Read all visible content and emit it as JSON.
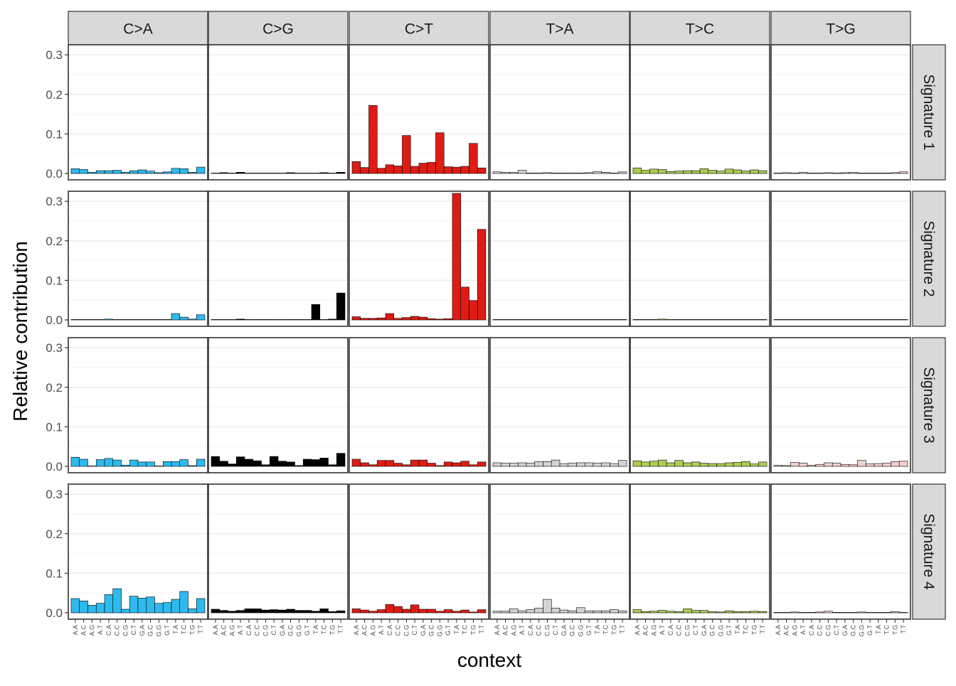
{
  "chart_data": {
    "type": "bar",
    "xlabel": "context",
    "ylabel": "Relative contribution",
    "ylim": [
      0,
      0.32
    ],
    "yticks": [
      0.0,
      0.1,
      0.2,
      0.3
    ],
    "ytick_labels": [
      "0.0",
      "0.1",
      "0.2",
      "0.3"
    ],
    "grid": true,
    "facet_columns": [
      "C>A",
      "C>G",
      "C>T",
      "T>A",
      "T>C",
      "T>G"
    ],
    "facet_rows": [
      "Signature 1",
      "Signature 2",
      "Signature 3",
      "Signature 4"
    ],
    "contexts": [
      "A.A",
      "A.C",
      "A.G",
      "A.T",
      "C.A",
      "C.C",
      "C.G",
      "C.T",
      "G.A",
      "G.C",
      "G.G",
      "G.T",
      "T.A",
      "T.C",
      "T.G",
      "T.T"
    ],
    "colors": {
      "C>A": "#2EBAED",
      "C>G": "#000000",
      "C>T": "#DE1C14",
      "T>A": "#D4D2D2",
      "T>C": "#ADCC54",
      "T>G": "#F0D0CE"
    },
    "series": [
      {
        "name": "Signature 1",
        "values": {
          "C>A": [
            0.012,
            0.01,
            0.003,
            0.007,
            0.007,
            0.008,
            0.003,
            0.007,
            0.009,
            0.006,
            0.002,
            0.004,
            0.013,
            0.012,
            0.003,
            0.016
          ],
          "C>G": [
            0.001,
            0.002,
            0.001,
            0.003,
            0.001,
            0.001,
            0.001,
            0.001,
            0.001,
            0.002,
            0.001,
            0.001,
            0.001,
            0.002,
            0.001,
            0.003
          ],
          "C>T": [
            0.03,
            0.015,
            0.172,
            0.013,
            0.022,
            0.019,
            0.096,
            0.018,
            0.026,
            0.028,
            0.103,
            0.017,
            0.016,
            0.018,
            0.076,
            0.014
          ],
          "T>A": [
            0.004,
            0.003,
            0.003,
            0.008,
            0.001,
            0.001,
            0.002,
            0.001,
            0.001,
            0.001,
            0.001,
            0.002,
            0.005,
            0.003,
            0.001,
            0.004
          ],
          "T>C": [
            0.014,
            0.008,
            0.011,
            0.01,
            0.005,
            0.006,
            0.007,
            0.007,
            0.012,
            0.008,
            0.006,
            0.011,
            0.009,
            0.006,
            0.009,
            0.007
          ],
          "T>G": [
            0.001,
            0.002,
            0.001,
            0.003,
            0.001,
            0.001,
            0.002,
            0.001,
            0.002,
            0.003,
            0.001,
            0.001,
            0.001,
            0.001,
            0.002,
            0.004
          ]
        }
      },
      {
        "name": "Signature 2",
        "values": {
          "C>A": [
            0.001,
            0.001,
            0.001,
            0.001,
            0.002,
            0.001,
            0.001,
            0.001,
            0.001,
            0.001,
            0.001,
            0.001,
            0.016,
            0.007,
            0.002,
            0.013
          ],
          "C>G": [
            0.001,
            0.001,
            0.001,
            0.002,
            0.001,
            0.001,
            0.001,
            0.001,
            0.001,
            0.001,
            0.001,
            0.001,
            0.039,
            0.001,
            0.002,
            0.068
          ],
          "C>T": [
            0.008,
            0.004,
            0.004,
            0.005,
            0.016,
            0.004,
            0.006,
            0.009,
            0.007,
            0.003,
            0.002,
            0.003,
            0.32,
            0.083,
            0.049,
            0.229
          ],
          "T>A": [
            0.001,
            0.001,
            0.001,
            0.001,
            0.001,
            0.001,
            0.001,
            0.001,
            0.001,
            0.001,
            0.001,
            0.001,
            0.001,
            0.001,
            0.001,
            0.001
          ],
          "T>C": [
            0.001,
            0.001,
            0.001,
            0.002,
            0.001,
            0.001,
            0.001,
            0.001,
            0.001,
            0.001,
            0.001,
            0.001,
            0.001,
            0.001,
            0.001,
            0.001
          ],
          "T>G": [
            0.001,
            0.001,
            0.001,
            0.001,
            0.001,
            0.001,
            0.001,
            0.001,
            0.001,
            0.001,
            0.001,
            0.001,
            0.001,
            0.001,
            0.001,
            0.001
          ]
        }
      },
      {
        "name": "Signature 3",
        "values": {
          "C>A": [
            0.023,
            0.018,
            0.001,
            0.017,
            0.02,
            0.016,
            0.003,
            0.016,
            0.011,
            0.011,
            0.001,
            0.012,
            0.012,
            0.017,
            0.002,
            0.018
          ],
          "C>G": [
            0.025,
            0.013,
            0.006,
            0.024,
            0.018,
            0.014,
            0.004,
            0.025,
            0.013,
            0.011,
            0.002,
            0.018,
            0.017,
            0.021,
            0.004,
            0.033
          ],
          "C>T": [
            0.018,
            0.009,
            0.004,
            0.015,
            0.015,
            0.008,
            0.004,
            0.016,
            0.016,
            0.008,
            0.002,
            0.011,
            0.009,
            0.013,
            0.004,
            0.011
          ],
          "T>A": [
            0.009,
            0.008,
            0.008,
            0.009,
            0.008,
            0.012,
            0.012,
            0.016,
            0.007,
            0.008,
            0.009,
            0.009,
            0.008,
            0.009,
            0.007,
            0.015
          ],
          "T>C": [
            0.014,
            0.011,
            0.013,
            0.016,
            0.009,
            0.015,
            0.009,
            0.011,
            0.008,
            0.007,
            0.007,
            0.009,
            0.01,
            0.012,
            0.006,
            0.011
          ],
          "T>G": [
            0.003,
            0.002,
            0.01,
            0.008,
            0.003,
            0.005,
            0.009,
            0.008,
            0.005,
            0.004,
            0.015,
            0.006,
            0.007,
            0.008,
            0.012,
            0.013
          ]
        }
      },
      {
        "name": "Signature 4",
        "values": {
          "C>A": [
            0.036,
            0.03,
            0.019,
            0.024,
            0.046,
            0.061,
            0.009,
            0.042,
            0.037,
            0.04,
            0.024,
            0.026,
            0.034,
            0.054,
            0.01,
            0.036
          ],
          "C>G": [
            0.009,
            0.006,
            0.004,
            0.006,
            0.01,
            0.01,
            0.007,
            0.008,
            0.007,
            0.009,
            0.006,
            0.006,
            0.004,
            0.01,
            0.003,
            0.005
          ],
          "C>T": [
            0.01,
            0.007,
            0.004,
            0.008,
            0.021,
            0.016,
            0.009,
            0.02,
            0.009,
            0.009,
            0.004,
            0.008,
            0.004,
            0.007,
            0.002,
            0.008
          ],
          "T>A": [
            0.004,
            0.004,
            0.01,
            0.005,
            0.008,
            0.012,
            0.034,
            0.012,
            0.007,
            0.005,
            0.013,
            0.005,
            0.005,
            0.005,
            0.008,
            0.005
          ],
          "T>C": [
            0.008,
            0.003,
            0.004,
            0.006,
            0.004,
            0.003,
            0.01,
            0.006,
            0.006,
            0.003,
            0.002,
            0.005,
            0.003,
            0.003,
            0.004,
            0.003
          ],
          "T>G": [
            0.001,
            0.001,
            0.002,
            0.001,
            0.001,
            0.002,
            0.004,
            0.001,
            0.001,
            0.001,
            0.002,
            0.001,
            0.001,
            0.001,
            0.003,
            0.001
          ]
        }
      }
    ]
  }
}
